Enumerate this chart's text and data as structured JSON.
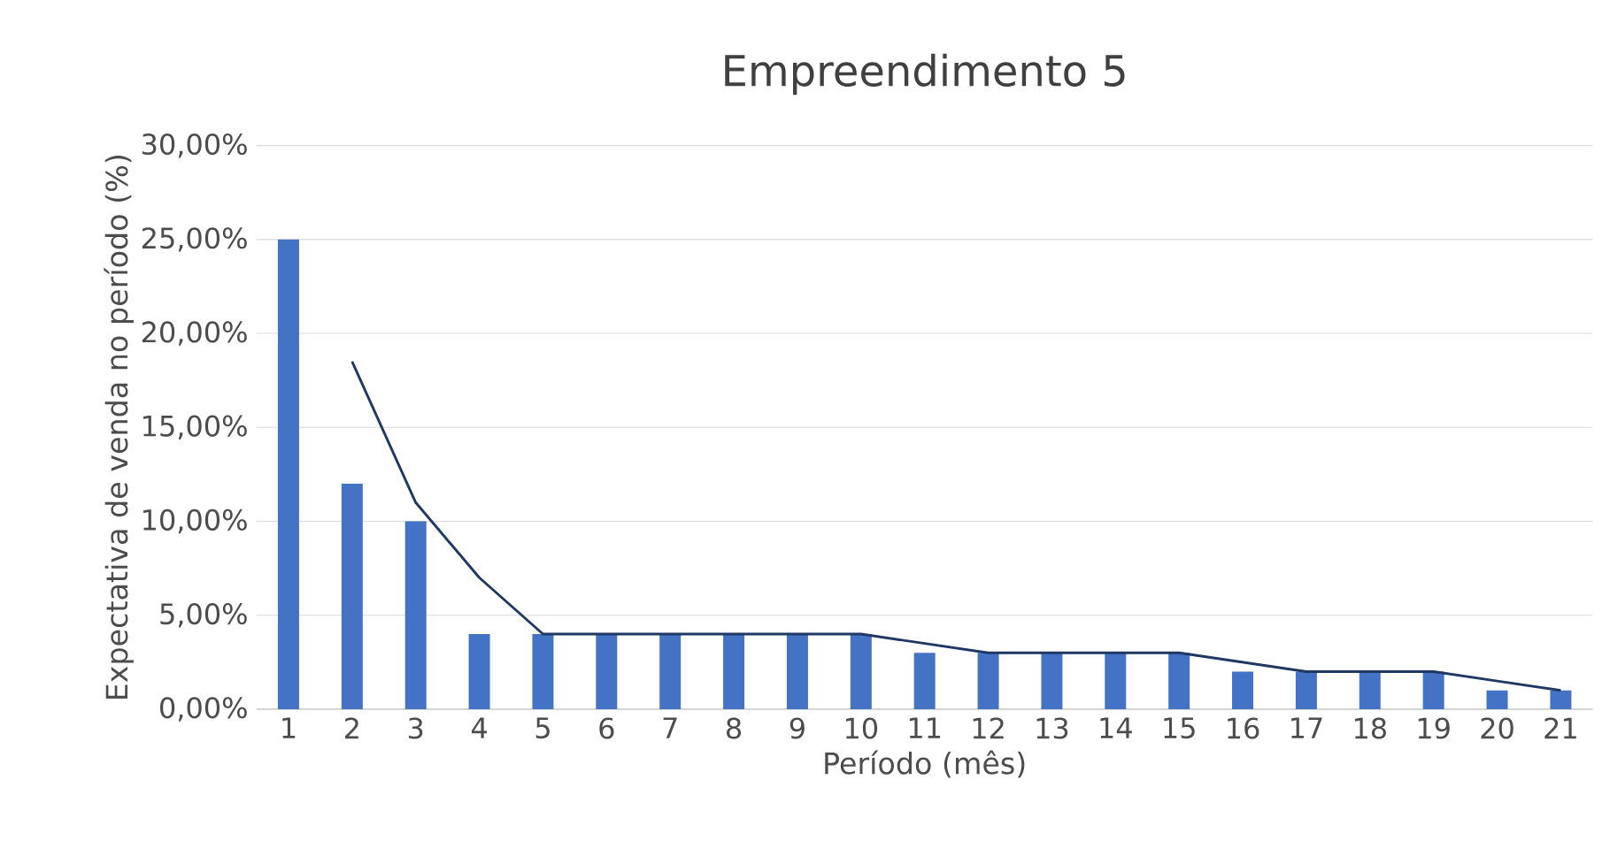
{
  "chart_data": {
    "type": "bar",
    "title": "Empreendimento 5",
    "xlabel": "Período (mês)",
    "ylabel": "Expectativa de venda no período (%)",
    "categories": [
      "1",
      "2",
      "3",
      "4",
      "5",
      "6",
      "7",
      "8",
      "9",
      "10",
      "11",
      "12",
      "13",
      "14",
      "15",
      "16",
      "17",
      "18",
      "19",
      "20",
      "21"
    ],
    "series": [
      {
        "type": "bar",
        "color": "#4472c4",
        "values": [
          25,
          12,
          10,
          4,
          4,
          4,
          4,
          4,
          4,
          4,
          3,
          3,
          3,
          3,
          3,
          2,
          2,
          2,
          2,
          1,
          1
        ]
      },
      {
        "type": "line",
        "color": "#1f3864",
        "values": [
          null,
          18.5,
          11,
          7,
          4,
          4,
          4,
          4,
          4,
          4,
          3.5,
          3,
          3,
          3,
          3,
          2.5,
          2,
          2,
          2,
          1.5,
          1
        ]
      }
    ],
    "ylim": [
      0,
      30
    ],
    "yticks": [
      {
        "value": 0,
        "label": "0,00%"
      },
      {
        "value": 5,
        "label": "5,00%"
      },
      {
        "value": 10,
        "label": "10,00%"
      },
      {
        "value": 15,
        "label": "15,00%"
      },
      {
        "value": 20,
        "label": "20,00%"
      },
      {
        "value": 25,
        "label": "25,00%"
      },
      {
        "value": 30,
        "label": "30,00%"
      }
    ],
    "grid": "y"
  }
}
